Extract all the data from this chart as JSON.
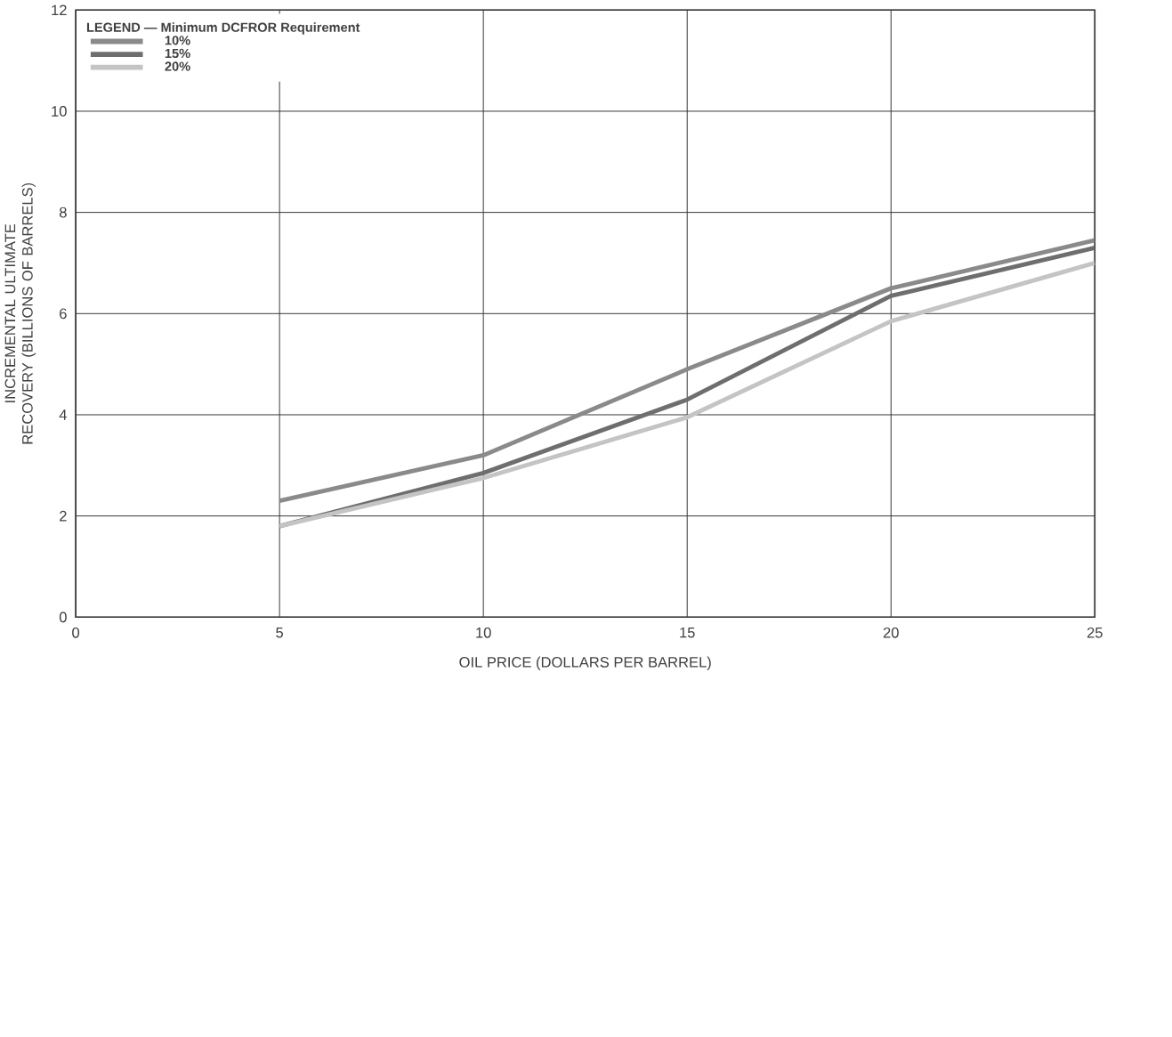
{
  "chart_data": {
    "type": "line",
    "xlabel": "OIL PRICE (DOLLARS PER BARREL)",
    "ylabel": "INCREMENTAL ULTIMATE RECOVERY (BILLIONS OF BARRELS)",
    "legend_title": "LEGEND — Minimum DCFROR Requirement",
    "x": [
      5,
      10,
      15,
      20,
      25
    ],
    "series": [
      {
        "name": "10%",
        "color": "#8a8a8a",
        "values": [
          2.3,
          3.2,
          4.9,
          6.5,
          7.45
        ]
      },
      {
        "name": "15%",
        "color": "#6e6e6e",
        "values": [
          1.8,
          2.85,
          4.3,
          6.35,
          7.3
        ]
      },
      {
        "name": "20%",
        "color": "#c4c4c4",
        "values": [
          1.8,
          2.75,
          3.95,
          5.85,
          7.0
        ]
      }
    ],
    "xlim": [
      0,
      25
    ],
    "ylim": [
      0,
      12
    ],
    "xticks": [
      0,
      5,
      10,
      15,
      20,
      25
    ],
    "yticks": [
      0,
      2,
      4,
      6,
      8,
      10,
      12
    ],
    "grid": true,
    "legend": "top left",
    "marker": "none",
    "line_style": "solid"
  }
}
